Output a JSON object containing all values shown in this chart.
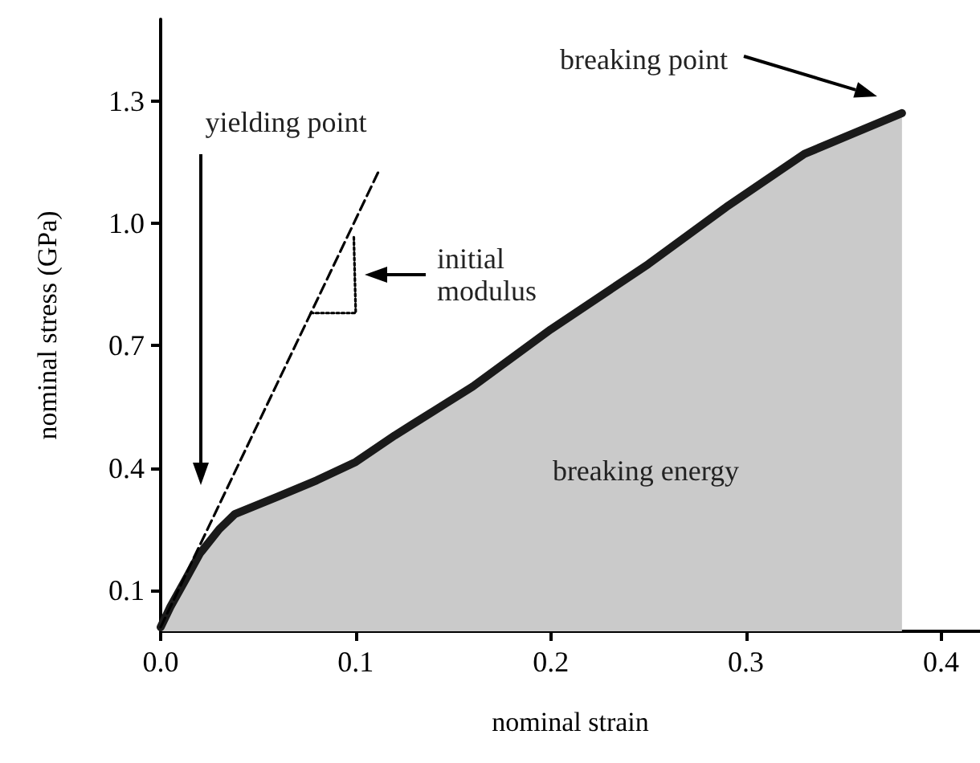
{
  "chart_data": {
    "type": "area",
    "xlabel": "nominal strain",
    "ylabel": "nominal stress (GPa)",
    "xlim": [
      0,
      0.42
    ],
    "xticks": [
      {
        "value": 0,
        "label": "0.0"
      },
      0.1,
      0.2,
      0.3,
      0.4
    ],
    "ylim": [
      0,
      1.5
    ],
    "yticks": [
      0.1,
      0.4,
      0.7,
      {
        "value": 1,
        "label": "1.0"
      },
      1.3
    ],
    "grid": false,
    "marker": "none",
    "series": [
      {
        "color": "#1a1a1a",
        "line_style": "solid",
        "x": [
          0,
          0.005,
          0.012,
          0.02,
          0.03,
          0.038,
          0.06,
          0.08,
          0.1,
          0.12,
          0.14,
          0.16,
          0.2,
          0.25,
          0.29,
          0.33,
          0.36,
          0.38
        ],
        "values": [
          0.01,
          0.06,
          0.12,
          0.19,
          0.25,
          0.287,
          0.33,
          0.37,
          0.415,
          0.48,
          0.54,
          0.6,
          0.74,
          0.9,
          1.04,
          1.17,
          1.23,
          1.27
        ]
      },
      {
        "type": "line",
        "color": "#000000",
        "line_style": "dashed",
        "x": [
          0,
          0.112
        ],
        "values": [
          0.01,
          1.13
        ]
      },
      {
        "type": "line",
        "color": "#000000",
        "line_style": "dotted",
        "x": [
          0.077,
          0.1,
          0.099
        ],
        "values": [
          0.78,
          0.78,
          0.97
        ]
      }
    ],
    "annotations": [
      "yielding point",
      "breaking point",
      "initial\nmodulus",
      "breaking energy"
    ]
  }
}
